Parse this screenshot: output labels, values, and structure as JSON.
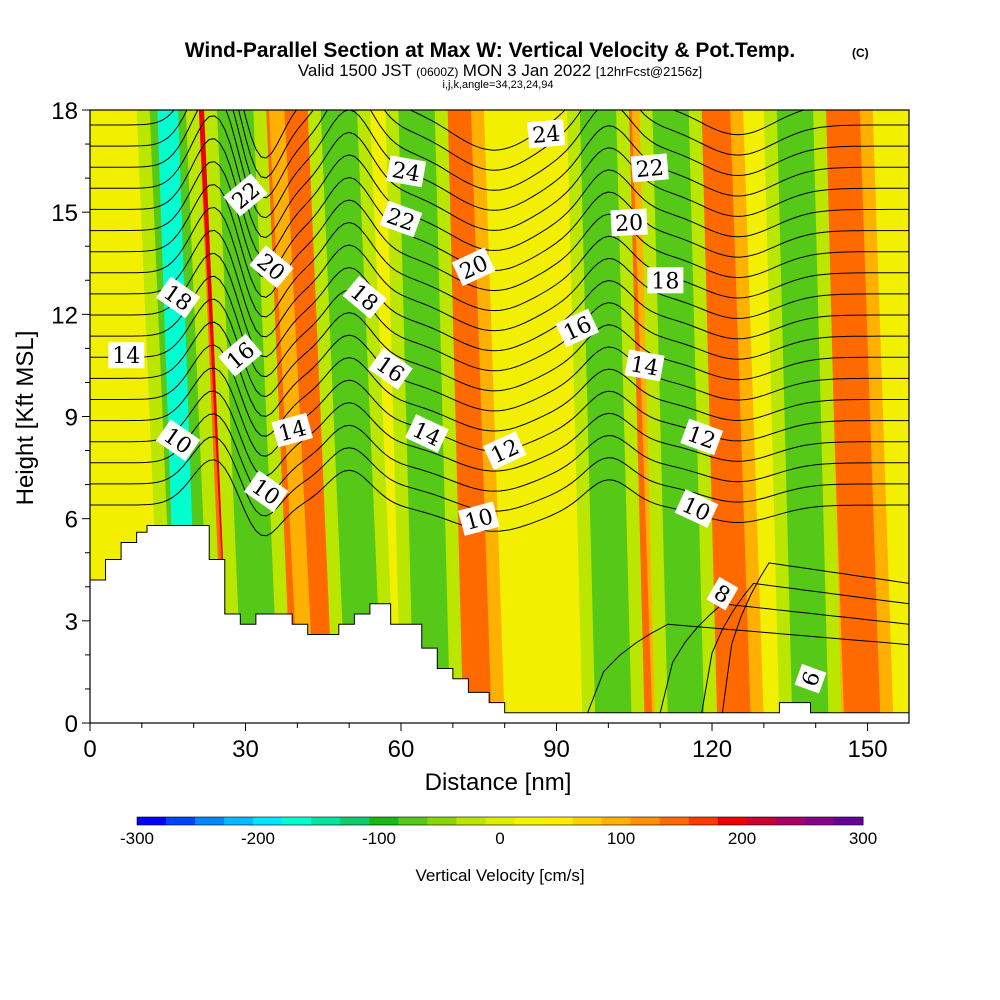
{
  "title": {
    "main": "Wind-Parallel Section at Max W: Vertical Velocity & Pot.Temp.",
    "copyright": "(C)",
    "valid_prefix": "Valid 1500 JST",
    "valid_utc": "(0600Z)",
    "valid_date": "MON 3 Jan 2022",
    "forecast": "[12hrFcst@2156z]",
    "indices": "i,j,k,angle=34,23,24,94"
  },
  "chart_data": {
    "type": "contour",
    "xlabel": "Distance [nm]",
    "ylabel": "Height [Kft MSL]",
    "xlim": [
      0,
      158
    ],
    "ylim": [
      0,
      18
    ],
    "x_ticks": [
      0,
      30,
      60,
      90,
      120,
      150
    ],
    "y_ticks": [
      0,
      3,
      6,
      9,
      12,
      15,
      18
    ],
    "shaded_field": {
      "name": "Vertical Velocity [cm/s]",
      "range": [
        -300,
        300
      ],
      "updraft_bands_x": [
        27,
        35,
        45,
        72,
        103,
        122,
        147
      ],
      "downdraft_bands_x": [
        19,
        32,
        52,
        65,
        100,
        114,
        138
      ]
    },
    "terrain_profile": {
      "x": [
        0,
        3,
        3,
        6,
        6,
        9,
        9,
        11,
        11,
        23,
        23,
        26,
        26,
        29,
        29,
        32,
        32,
        39,
        39,
        42,
        42,
        48,
        48,
        51,
        51,
        54,
        54,
        58,
        58,
        64,
        64,
        67,
        67,
        70,
        70,
        73,
        73,
        77,
        77,
        80,
        80,
        84,
        84,
        131,
        131,
        133,
        133,
        139,
        139,
        158
      ],
      "y": [
        4.2,
        4.2,
        4.8,
        4.8,
        5.3,
        5.3,
        5.6,
        5.6,
        5.8,
        5.8,
        4.8,
        4.8,
        3.2,
        3.2,
        2.9,
        2.9,
        3.2,
        3.2,
        2.9,
        2.9,
        2.6,
        2.6,
        2.9,
        2.9,
        3.2,
        3.2,
        3.5,
        3.5,
        2.9,
        2.9,
        2.2,
        2.2,
        1.6,
        1.6,
        1.3,
        1.3,
        0.9,
        0.9,
        0.6,
        0.6,
        0.3,
        0.3,
        0.3,
        0.3,
        0.3,
        0.3,
        0.6,
        0.6,
        0.3,
        0.3
      ]
    },
    "contour_labels": [
      {
        "text": "24",
        "x": 88,
        "y": 17.3,
        "angle": -5
      },
      {
        "text": "24",
        "x": 61,
        "y": 16.2,
        "angle": 10
      },
      {
        "text": "22",
        "x": 108,
        "y": 16.3,
        "angle": -5
      },
      {
        "text": "22",
        "x": 30,
        "y": 15.5,
        "angle": -40
      },
      {
        "text": "22",
        "x": 60,
        "y": 14.8,
        "angle": 20
      },
      {
        "text": "20",
        "x": 104,
        "y": 14.7,
        "angle": -3
      },
      {
        "text": "20",
        "x": 35,
        "y": 13.4,
        "angle": 40
      },
      {
        "text": "20",
        "x": 74,
        "y": 13.4,
        "angle": -25
      },
      {
        "text": "18",
        "x": 111,
        "y": 13.0,
        "angle": 0
      },
      {
        "text": "18",
        "x": 17,
        "y": 12.5,
        "angle": 35
      },
      {
        "text": "18",
        "x": 53,
        "y": 12.5,
        "angle": 40
      },
      {
        "text": "16",
        "x": 94,
        "y": 11.6,
        "angle": -25
      },
      {
        "text": "16",
        "x": 29,
        "y": 10.8,
        "angle": -40
      },
      {
        "text": "16",
        "x": 58,
        "y": 10.4,
        "angle": 35
      },
      {
        "text": "14",
        "x": 7,
        "y": 10.8,
        "angle": 0
      },
      {
        "text": "14",
        "x": 107,
        "y": 10.5,
        "angle": 10
      },
      {
        "text": "14",
        "x": 39,
        "y": 8.6,
        "angle": -15
      },
      {
        "text": "14",
        "x": 65,
        "y": 8.5,
        "angle": 25
      },
      {
        "text": "12",
        "x": 80,
        "y": 8.0,
        "angle": -25
      },
      {
        "text": "12",
        "x": 118,
        "y": 8.4,
        "angle": 20
      },
      {
        "text": "10",
        "x": 17,
        "y": 8.3,
        "angle": 35
      },
      {
        "text": "10",
        "x": 34,
        "y": 6.8,
        "angle": 35
      },
      {
        "text": "10",
        "x": 75,
        "y": 6.0,
        "angle": -15
      },
      {
        "text": "10",
        "x": 117,
        "y": 6.3,
        "angle": 25
      },
      {
        "text": "8",
        "x": 122,
        "y": 3.8,
        "angle": 30
      },
      {
        "text": "6",
        "x": 139,
        "y": 1.3,
        "angle": -70
      }
    ]
  },
  "colorbar": {
    "ticks": [
      "-300",
      "-200",
      "-100",
      "0",
      "100",
      "200",
      "300"
    ],
    "label": "Vertical Velocity [cm/s]",
    "colors": [
      "#0000ff",
      "#0044ff",
      "#0088ff",
      "#00bbff",
      "#00e6ff",
      "#00ffd0",
      "#00e6a0",
      "#10cc70",
      "#18b818",
      "#55c818",
      "#88d800",
      "#bbe600",
      "#ddee00",
      "#f5f500",
      "#ffee00",
      "#ffd000",
      "#ffb000",
      "#ff9000",
      "#ff6a00",
      "#ff3a00",
      "#ee0000",
      "#cc0033",
      "#aa0066",
      "#880088",
      "#660099"
    ]
  }
}
